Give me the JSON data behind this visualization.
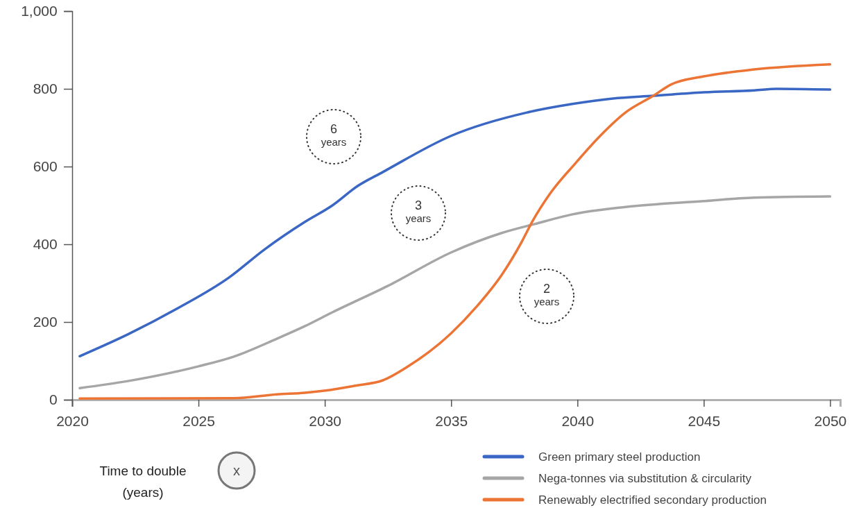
{
  "chart_data": {
    "type": "line",
    "xlim": [
      2020,
      2050.4
    ],
    "ylim": [
      0,
      1000
    ],
    "xticks": [
      2020,
      2025,
      2030,
      2035,
      2040,
      2045,
      2050
    ],
    "yticks": [
      0,
      200,
      400,
      600,
      800,
      {
        "value": 1000,
        "label": "1,000"
      }
    ],
    "grid": false,
    "legend": "bottom right",
    "marker": "none",
    "line_style": "solid",
    "series": [
      {
        "name": "Green primary steel production",
        "color": "#3a66c4",
        "x": [
          2020.3,
          2022.2,
          2024.2,
          2026.2,
          2027.6,
          2029.2,
          2030.3,
          2031.3,
          2032.3,
          2035,
          2038,
          2039.8,
          2041.4,
          2043,
          2045,
          2047,
          2047.9,
          2050
        ],
        "values": [
          112,
          168,
          236,
          314,
          386,
          457,
          500,
          550,
          586,
          679,
          739,
          761,
          775,
          782,
          791,
          796,
          800,
          798
        ]
      },
      {
        "name": "Nega-tonnes via substitution & circularity",
        "color": "#a6a6a6",
        "x": [
          2020.3,
          2022.2,
          2025,
          2026.4,
          2028.1,
          2029.2,
          2030.3,
          2032.5,
          2035,
          2037,
          2038.3,
          2039.8,
          2041.9,
          2045,
          2047,
          2050
        ],
        "values": [
          30,
          48,
          86,
          111,
          157,
          189,
          225,
          293,
          379,
          429,
          452,
          477,
          496,
          511,
          520,
          523
        ]
      },
      {
        "name": "Renewably electrified secondary production",
        "color": "#ec7434",
        "x": [
          2020.3,
          2026.4,
          2028.1,
          2029.2,
          2030.2,
          2031.2,
          2032.3,
          2033.3,
          2035,
          2036,
          2037,
          2037.8,
          2038.2,
          2038.9,
          2039.9,
          2040.9,
          2041.9,
          2043,
          2043.7,
          2045,
          2047,
          2050
        ],
        "values": [
          3,
          4,
          14,
          18,
          25,
          36,
          50,
          86,
          171,
          239,
          321,
          407,
          457,
          529,
          607,
          679,
          739,
          782,
          811,
          832,
          850,
          863
        ]
      }
    ],
    "annotations": [
      "Time to double (years)",
      "x",
      "6 years",
      "3 years",
      "2 years"
    ]
  }
}
